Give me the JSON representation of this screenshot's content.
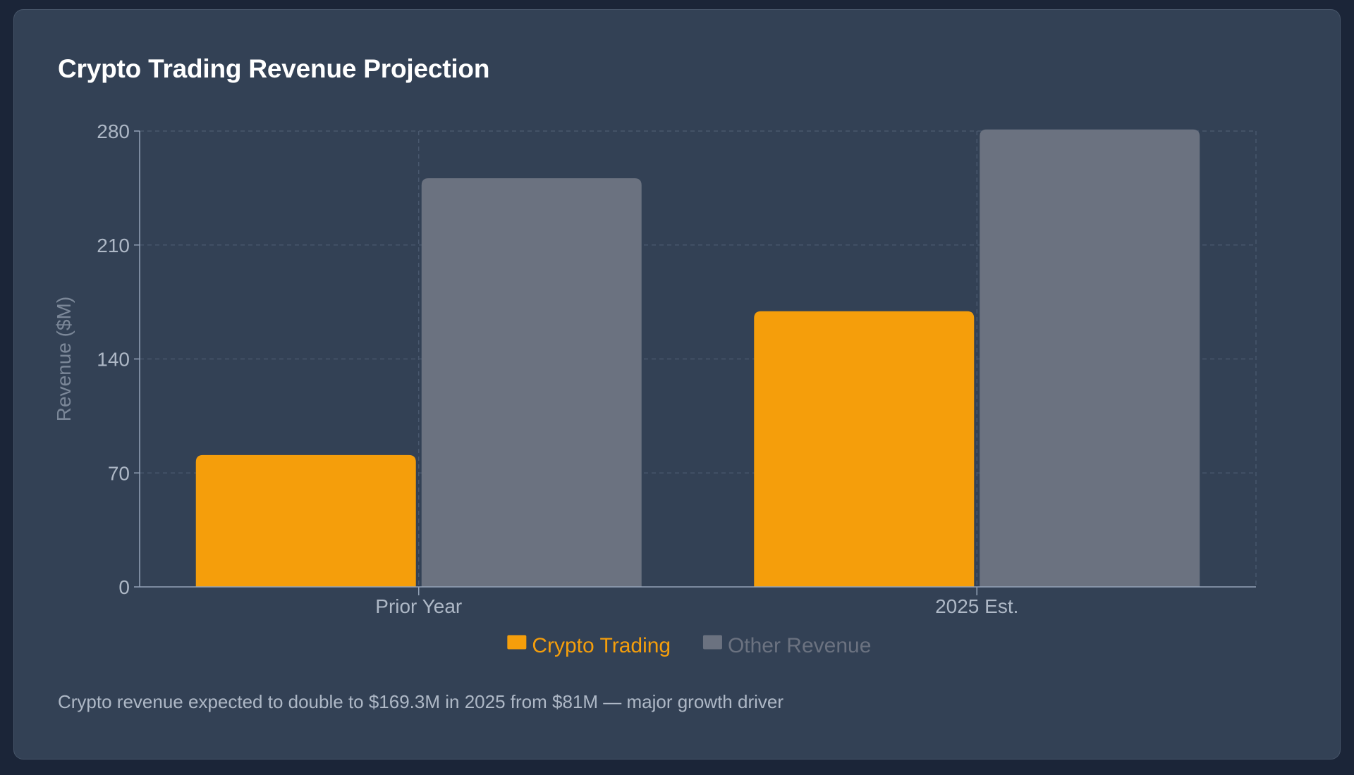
{
  "page": {
    "title": "Crypto Trading Revenue Projection",
    "caption": "Crypto revenue expected to double to $169.3M in 2025 from $81M — major growth driver"
  },
  "chart_data": {
    "type": "bar",
    "title": "Crypto Trading Revenue Projection",
    "xlabel": "",
    "ylabel": "Revenue ($M)",
    "categories": [
      "Prior Year",
      "2025 Est."
    ],
    "series": [
      {
        "name": "Crypto Trading",
        "color": "#f59e0b",
        "values": [
          81,
          169.3
        ]
      },
      {
        "name": "Other Revenue",
        "color": "#6b7280",
        "values": [
          251,
          281
        ]
      }
    ],
    "ylim": [
      0,
      280
    ],
    "yticks": [
      0,
      70,
      140,
      210,
      280
    ],
    "grid": true,
    "legend": "bottom-center"
  }
}
